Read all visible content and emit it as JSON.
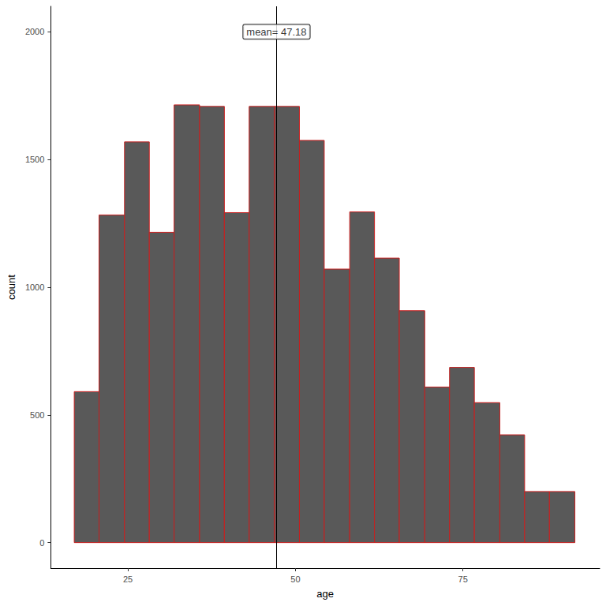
{
  "chart_data": {
    "type": "histogram",
    "x_label": "age",
    "y_label": "count",
    "bins": [
      17.0,
      20.7,
      24.5,
      28.2,
      31.9,
      35.7,
      39.4,
      43.1,
      46.9,
      50.6,
      54.3,
      58.1,
      61.8,
      65.5,
      69.3,
      73.0,
      76.7,
      80.5,
      84.2,
      87.9,
      91.7
    ],
    "values": [
      591,
      1283,
      1569,
      1215,
      1714,
      1708,
      1292,
      1708,
      1708,
      1575,
      1071,
      1295,
      1114,
      908,
      609,
      686,
      548,
      422,
      200,
      200
    ],
    "color": "#595959",
    "xlim": [
      13.5,
      95.4
    ],
    "xticks": [
      25,
      50,
      75
    ],
    "ylim": [
      -100,
      2100
    ],
    "yticks": [
      0,
      500,
      1000,
      1500,
      2000
    ],
    "grid": false,
    "annotations": [
      {
        "text": "mean= 47.18",
        "x": 47.18,
        "y": 2000
      }
    ]
  }
}
